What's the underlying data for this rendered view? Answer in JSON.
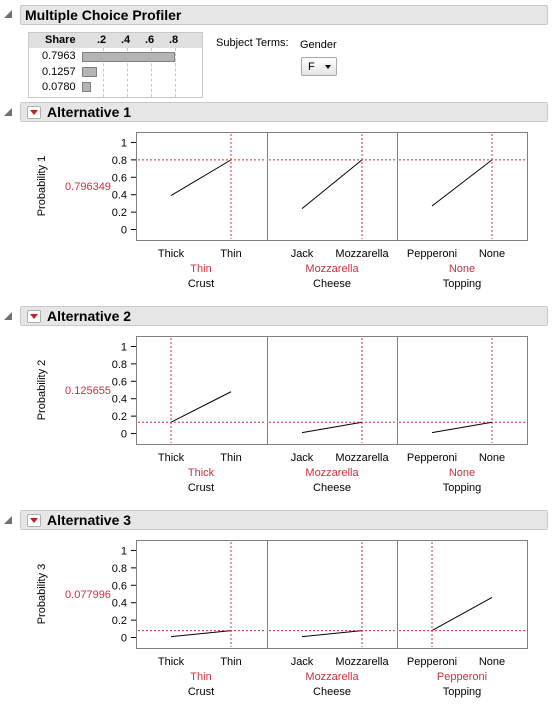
{
  "profiler": {
    "title": "Multiple Choice Profiler",
    "share": {
      "header": "Share",
      "ticks": [
        ".2",
        ".4",
        ".6",
        ".8"
      ],
      "rows": [
        {
          "label": "0.7963",
          "value": 0.7963
        },
        {
          "label": "0.1257",
          "value": 0.1257
        },
        {
          "label": "0.0780",
          "value": 0.078
        }
      ]
    },
    "subject_terms_label": "Subject Terms:",
    "gender": {
      "label": "Gender",
      "selected": "F"
    }
  },
  "chart_data": [
    {
      "type": "line",
      "title": "Alternative 1",
      "ylabel": "Probability 1",
      "current_value": "0.796349",
      "ylim": [
        -0.12,
        1.12
      ],
      "yticks": [
        "0",
        "0.2",
        "0.4",
        "0.6",
        "0.8",
        "1"
      ],
      "grid": false,
      "panels": [
        {
          "factor": "Crust",
          "categories": [
            "Thick",
            "Thin"
          ],
          "values": [
            0.39,
            0.8
          ],
          "selected": "Thin",
          "selected_index": 1
        },
        {
          "factor": "Cheese",
          "categories": [
            "Jack",
            "Mozzarella"
          ],
          "values": [
            0.24,
            0.8
          ],
          "selected": "Mozzarella",
          "selected_index": 1
        },
        {
          "factor": "Topping",
          "categories": [
            "Pepperoni",
            "None"
          ],
          "values": [
            0.27,
            0.8
          ],
          "selected": "None",
          "selected_index": 1
        }
      ]
    },
    {
      "type": "line",
      "title": "Alternative 2",
      "ylabel": "Probability 2",
      "current_value": "0.125655",
      "ylim": [
        -0.12,
        1.12
      ],
      "yticks": [
        "0",
        "0.2",
        "0.4",
        "0.6",
        "0.8",
        "1"
      ],
      "grid": false,
      "panels": [
        {
          "factor": "Crust",
          "categories": [
            "Thick",
            "Thin"
          ],
          "values": [
            0.13,
            0.48
          ],
          "selected": "Thick",
          "selected_index": 0
        },
        {
          "factor": "Cheese",
          "categories": [
            "Jack",
            "Mozzarella"
          ],
          "values": [
            0.01,
            0.13
          ],
          "selected": "Mozzarella",
          "selected_index": 1
        },
        {
          "factor": "Topping",
          "categories": [
            "Pepperoni",
            "None"
          ],
          "values": [
            0.01,
            0.13
          ],
          "selected": "None",
          "selected_index": 1
        }
      ]
    },
    {
      "type": "line",
      "title": "Alternative 3",
      "ylabel": "Probability 3",
      "current_value": "0.077996",
      "ylim": [
        -0.12,
        1.12
      ],
      "yticks": [
        "0",
        "0.2",
        "0.4",
        "0.6",
        "0.8",
        "1"
      ],
      "grid": false,
      "panels": [
        {
          "factor": "Crust",
          "categories": [
            "Thick",
            "Thin"
          ],
          "values": [
            0.01,
            0.08
          ],
          "selected": "Thin",
          "selected_index": 1
        },
        {
          "factor": "Cheese",
          "categories": [
            "Jack",
            "Mozzarella"
          ],
          "values": [
            0.01,
            0.08
          ],
          "selected": "Mozzarella",
          "selected_index": 1
        },
        {
          "factor": "Topping",
          "categories": [
            "Pepperoni",
            "None"
          ],
          "values": [
            0.08,
            0.46
          ],
          "selected": "Pepperoni",
          "selected_index": 0
        }
      ]
    }
  ]
}
